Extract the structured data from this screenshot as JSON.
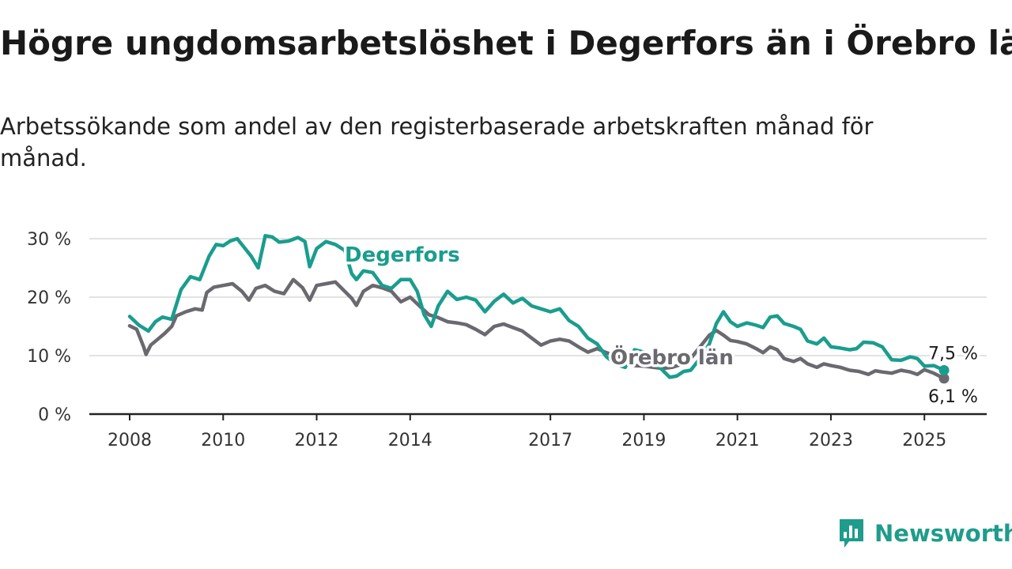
{
  "title": "Högre ungdomsarbetslöshet i Degerfors än i Örebro län",
  "subtitle": "Arbetssökande som andel av den registerbaserade arbetskraften månad för månad.",
  "brand": {
    "name": "Newsworthy"
  },
  "colors": {
    "degerfors": "#1a9d8e",
    "orebro": "#6b6970",
    "grid": "#d9d9d9",
    "axis": "#222222"
  },
  "chart_data": {
    "type": "line",
    "x_ticks": [
      "2008",
      "2010",
      "2012",
      "2014",
      "2017",
      "2019",
      "2021",
      "2023",
      "2025"
    ],
    "y_ticks": [
      "0 %",
      "10 %",
      "20 %",
      "30 %"
    ],
    "ylim": [
      0,
      30
    ],
    "xlim": [
      2008,
      2025.5
    ],
    "grid": true,
    "series": [
      {
        "name": "Degerfors",
        "color": "#1a9d8e",
        "end_label": "7,5 %",
        "points": [
          [
            2008.0,
            16.7
          ],
          [
            2008.2,
            15.2
          ],
          [
            2008.4,
            14.2
          ],
          [
            2008.55,
            15.8
          ],
          [
            2008.7,
            16.6
          ],
          [
            2008.9,
            16.2
          ],
          [
            2009.1,
            21.3
          ],
          [
            2009.3,
            23.5
          ],
          [
            2009.5,
            23.0
          ],
          [
            2009.7,
            27.0
          ],
          [
            2009.85,
            29.0
          ],
          [
            2010.0,
            28.8
          ],
          [
            2010.15,
            29.6
          ],
          [
            2010.3,
            30.0
          ],
          [
            2010.45,
            28.5
          ],
          [
            2010.6,
            27.0
          ],
          [
            2010.75,
            25.0
          ],
          [
            2010.9,
            30.5
          ],
          [
            2011.05,
            30.3
          ],
          [
            2011.2,
            29.4
          ],
          [
            2011.4,
            29.6
          ],
          [
            2011.6,
            30.2
          ],
          [
            2011.75,
            29.5
          ],
          [
            2011.85,
            25.2
          ],
          [
            2012.0,
            28.3
          ],
          [
            2012.2,
            29.5
          ],
          [
            2012.4,
            29.0
          ],
          [
            2012.6,
            28.0
          ],
          [
            2012.75,
            24.0
          ],
          [
            2012.85,
            23.0
          ],
          [
            2013.0,
            24.5
          ],
          [
            2013.2,
            24.2
          ],
          [
            2013.4,
            22.0
          ],
          [
            2013.6,
            21.5
          ],
          [
            2013.8,
            23.0
          ],
          [
            2014.0,
            23.0
          ],
          [
            2014.15,
            21.0
          ],
          [
            2014.3,
            17.0
          ],
          [
            2014.45,
            15.0
          ],
          [
            2014.6,
            18.5
          ],
          [
            2014.8,
            21.0
          ],
          [
            2015.0,
            19.6
          ],
          [
            2015.2,
            20.0
          ],
          [
            2015.4,
            19.5
          ],
          [
            2015.6,
            17.5
          ],
          [
            2015.8,
            19.3
          ],
          [
            2016.0,
            20.5
          ],
          [
            2016.2,
            19.0
          ],
          [
            2016.4,
            19.8
          ],
          [
            2016.6,
            18.5
          ],
          [
            2016.8,
            18.0
          ],
          [
            2017.0,
            17.5
          ],
          [
            2017.2,
            18.0
          ],
          [
            2017.4,
            16.0
          ],
          [
            2017.6,
            15.0
          ],
          [
            2017.8,
            13.0
          ],
          [
            2018.0,
            12.0
          ],
          [
            2018.2,
            9.8
          ],
          [
            2018.4,
            8.5
          ],
          [
            2018.6,
            8.0
          ],
          [
            2018.8,
            11.0
          ],
          [
            2019.0,
            10.6
          ],
          [
            2019.2,
            9.2
          ],
          [
            2019.4,
            7.5
          ],
          [
            2019.55,
            6.3
          ],
          [
            2019.7,
            6.5
          ],
          [
            2019.85,
            7.3
          ],
          [
            2020.0,
            7.5
          ],
          [
            2020.2,
            9.5
          ],
          [
            2020.4,
            12.0
          ],
          [
            2020.55,
            15.5
          ],
          [
            2020.7,
            17.5
          ],
          [
            2020.85,
            15.8
          ],
          [
            2021.0,
            15.0
          ],
          [
            2021.2,
            15.6
          ],
          [
            2021.4,
            15.2
          ],
          [
            2021.55,
            14.8
          ],
          [
            2021.7,
            16.6
          ],
          [
            2021.85,
            16.8
          ],
          [
            2022.0,
            15.5
          ],
          [
            2022.2,
            15.0
          ],
          [
            2022.35,
            14.5
          ],
          [
            2022.5,
            12.5
          ],
          [
            2022.7,
            12.0
          ],
          [
            2022.85,
            13.0
          ],
          [
            2023.0,
            11.5
          ],
          [
            2023.2,
            11.3
          ],
          [
            2023.4,
            11.0
          ],
          [
            2023.55,
            11.2
          ],
          [
            2023.7,
            12.3
          ],
          [
            2023.9,
            12.2
          ],
          [
            2024.1,
            11.5
          ],
          [
            2024.3,
            9.3
          ],
          [
            2024.5,
            9.2
          ],
          [
            2024.7,
            9.8
          ],
          [
            2024.85,
            9.5
          ],
          [
            2025.0,
            8.2
          ],
          [
            2025.2,
            8.3
          ],
          [
            2025.42,
            7.5
          ]
        ]
      },
      {
        "name": "Örebro län",
        "color": "#6b6970",
        "end_label": "6,1 %",
        "points": [
          [
            2008.0,
            15.1
          ],
          [
            2008.15,
            14.5
          ],
          [
            2008.3,
            11.5
          ],
          [
            2008.35,
            10.2
          ],
          [
            2008.45,
            11.8
          ],
          [
            2008.6,
            12.8
          ],
          [
            2008.75,
            13.8
          ],
          [
            2008.9,
            15.0
          ],
          [
            2009.0,
            16.8
          ],
          [
            2009.2,
            17.5
          ],
          [
            2009.4,
            18.0
          ],
          [
            2009.55,
            17.8
          ],
          [
            2009.65,
            20.8
          ],
          [
            2009.8,
            21.7
          ],
          [
            2010.0,
            22.0
          ],
          [
            2010.2,
            22.3
          ],
          [
            2010.4,
            21.0
          ],
          [
            2010.55,
            19.5
          ],
          [
            2010.7,
            21.5
          ],
          [
            2010.9,
            22.0
          ],
          [
            2011.1,
            21.0
          ],
          [
            2011.3,
            20.6
          ],
          [
            2011.5,
            23.0
          ],
          [
            2011.7,
            21.6
          ],
          [
            2011.85,
            19.5
          ],
          [
            2012.0,
            22.0
          ],
          [
            2012.2,
            22.3
          ],
          [
            2012.4,
            22.6
          ],
          [
            2012.6,
            21.0
          ],
          [
            2012.75,
            19.8
          ],
          [
            2012.85,
            18.6
          ],
          [
            2013.0,
            21.0
          ],
          [
            2013.2,
            22.0
          ],
          [
            2013.4,
            21.6
          ],
          [
            2013.6,
            21.0
          ],
          [
            2013.8,
            19.2
          ],
          [
            2014.0,
            20.0
          ],
          [
            2014.2,
            18.5
          ],
          [
            2014.4,
            17.0
          ],
          [
            2014.6,
            16.5
          ],
          [
            2014.8,
            15.8
          ],
          [
            2015.0,
            15.6
          ],
          [
            2015.2,
            15.3
          ],
          [
            2015.4,
            14.5
          ],
          [
            2015.6,
            13.6
          ],
          [
            2015.8,
            15.0
          ],
          [
            2016.0,
            15.4
          ],
          [
            2016.2,
            14.8
          ],
          [
            2016.4,
            14.2
          ],
          [
            2016.6,
            13.0
          ],
          [
            2016.8,
            11.8
          ],
          [
            2017.0,
            12.5
          ],
          [
            2017.2,
            12.8
          ],
          [
            2017.4,
            12.5
          ],
          [
            2017.6,
            11.5
          ],
          [
            2017.8,
            10.6
          ],
          [
            2018.0,
            11.2
          ],
          [
            2018.2,
            10.5
          ],
          [
            2018.4,
            10.0
          ],
          [
            2018.6,
            9.5
          ],
          [
            2018.8,
            8.3
          ],
          [
            2019.0,
            8.2
          ],
          [
            2019.2,
            8.0
          ],
          [
            2019.4,
            7.8
          ],
          [
            2019.6,
            8.0
          ],
          [
            2019.8,
            8.5
          ],
          [
            2020.0,
            9.5
          ],
          [
            2020.2,
            11.5
          ],
          [
            2020.4,
            13.5
          ],
          [
            2020.55,
            14.3
          ],
          [
            2020.7,
            13.5
          ],
          [
            2020.85,
            12.6
          ],
          [
            2021.0,
            12.4
          ],
          [
            2021.2,
            12.0
          ],
          [
            2021.4,
            11.2
          ],
          [
            2021.55,
            10.5
          ],
          [
            2021.7,
            11.5
          ],
          [
            2021.85,
            11.0
          ],
          [
            2022.0,
            9.5
          ],
          [
            2022.2,
            9.0
          ],
          [
            2022.35,
            9.5
          ],
          [
            2022.5,
            8.6
          ],
          [
            2022.7,
            8.0
          ],
          [
            2022.85,
            8.6
          ],
          [
            2023.0,
            8.3
          ],
          [
            2023.2,
            8.0
          ],
          [
            2023.4,
            7.5
          ],
          [
            2023.6,
            7.3
          ],
          [
            2023.8,
            6.8
          ],
          [
            2023.95,
            7.4
          ],
          [
            2024.1,
            7.2
          ],
          [
            2024.3,
            7.0
          ],
          [
            2024.5,
            7.5
          ],
          [
            2024.7,
            7.2
          ],
          [
            2024.85,
            6.8
          ],
          [
            2025.0,
            7.6
          ],
          [
            2025.2,
            7.0
          ],
          [
            2025.42,
            6.1
          ]
        ]
      }
    ]
  }
}
